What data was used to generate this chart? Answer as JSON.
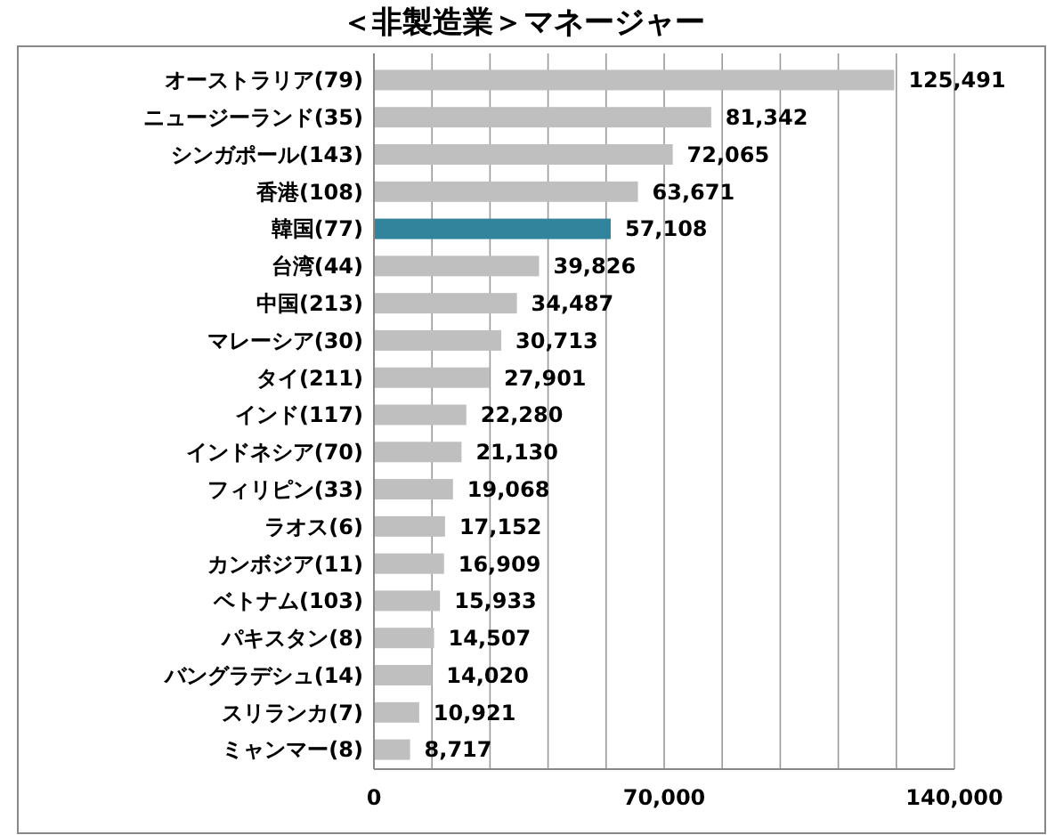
{
  "chart_data": {
    "type": "bar",
    "orientation": "horizontal",
    "title": "＜非製造業＞マネージャー",
    "categories": [
      "オーストラリア(79)",
      "ニュージーランド(35)",
      "シンガポール(143)",
      "香港(108)",
      "韓国(77)",
      "台湾(44)",
      "中国(213)",
      "マレーシア(30)",
      "タイ(211)",
      "インド(117)",
      "インドネシア(70)",
      "フィリピン(33)",
      "ラオス(6)",
      "カンボジア(11)",
      "ベトナム(103)",
      "パキスタン(8)",
      "バングラデシュ(14)",
      "スリランカ(7)",
      "ミャンマー(8)"
    ],
    "values": [
      125491,
      81342,
      72065,
      63671,
      57108,
      39826,
      34487,
      30713,
      27901,
      22280,
      21130,
      19068,
      17152,
      16909,
      15933,
      14507,
      14020,
      10921,
      8717
    ],
    "colors": [
      "#bfbfbf",
      "#bfbfbf",
      "#bfbfbf",
      "#bfbfbf",
      "#31849b",
      "#bfbfbf",
      "#bfbfbf",
      "#bfbfbf",
      "#bfbfbf",
      "#bfbfbf",
      "#bfbfbf",
      "#bfbfbf",
      "#bfbfbf",
      "#bfbfbf",
      "#bfbfbf",
      "#bfbfbf",
      "#bfbfbf",
      "#bfbfbf",
      "#bfbfbf"
    ],
    "xlim": [
      0,
      140000
    ],
    "xticks": [
      0,
      {
        "value": 14000,
        "label": null
      },
      {
        "value": 28000,
        "label": null
      },
      {
        "value": 42000,
        "label": null
      },
      {
        "value": 56000,
        "label": null
      },
      {
        "value": 70000,
        "label": "70,000"
      },
      {
        "value": 84000,
        "label": null
      },
      {
        "value": 98000,
        "label": null
      },
      {
        "value": 112000,
        "label": null
      },
      {
        "value": 126000,
        "label": null
      },
      {
        "value": 140000,
        "label": "140,000"
      }
    ],
    "value_labels": [
      "125,491",
      "81,342",
      "72,065",
      "63,671",
      "57,108",
      "39,826",
      "34,487",
      "30,713",
      "27,901",
      "22,280",
      "21,130",
      "19,068",
      "17,152",
      "16,909",
      "15,933",
      "14,507",
      "14,020",
      "10,921",
      "8,717"
    ],
    "grid": "x"
  }
}
